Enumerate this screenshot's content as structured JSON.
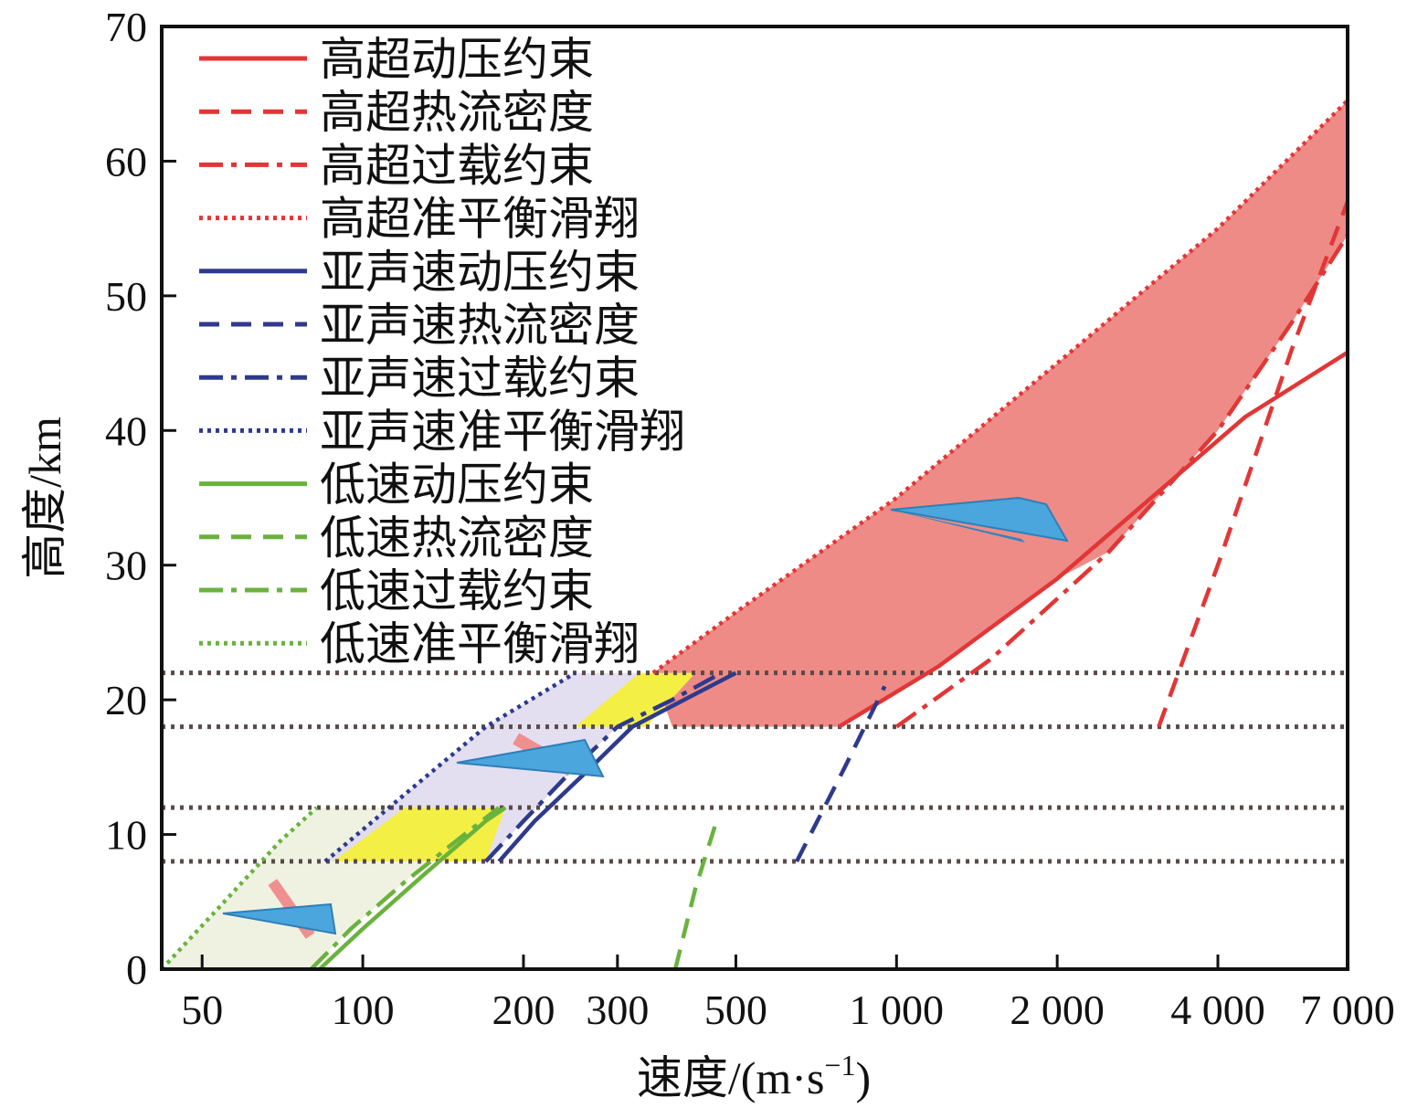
{
  "chart_data": {
    "type": "line",
    "xscale": "log",
    "xlabel_main": "速度/(m·s",
    "xlabel_sup": "−1",
    "xlabel_close": ")",
    "ylabel": "高度/km",
    "xlim": [
      42,
      7000
    ],
    "ylim": [
      0,
      70
    ],
    "xticks": [
      50,
      100,
      200,
      300,
      500,
      1000,
      2000,
      4000,
      7000
    ],
    "xtick_labels": [
      "50",
      "100",
      "200",
      "300",
      "500",
      "1 000",
      "2 000",
      "4 000",
      "7 000"
    ],
    "yticks": [
      0,
      10,
      20,
      30,
      40,
      50,
      60,
      70
    ],
    "ytick_labels": [
      "0",
      "10",
      "20",
      "30",
      "40",
      "50",
      "60",
      "70"
    ],
    "colors": {
      "hyper": "#e23636",
      "subsonic": "#2e3a8c",
      "low": "#6ab23e",
      "ref_line": "#5a4a48"
    },
    "reference_altitudes": [
      8,
      12,
      18,
      22
    ],
    "series": [
      {
        "name": "高超动压约束",
        "group": "hyper",
        "style": "solid",
        "x": [
          780,
          1200,
          2000,
          4500,
          7000
        ],
        "y": [
          18,
          22.5,
          29,
          41,
          45.8
        ]
      },
      {
        "name": "高超热流密度",
        "group": "hyper",
        "style": "dashed",
        "x": [
          3100,
          4000,
          5500,
          7000
        ],
        "y": [
          18,
          30,
          46,
          57
        ]
      },
      {
        "name": "高超过载约束",
        "group": "hyper",
        "style": "dashdot",
        "x": [
          1000,
          1500,
          2500,
          4000,
          5500,
          7000
        ],
        "y": [
          18,
          23,
          31,
          40,
          48,
          54.5
        ]
      },
      {
        "name": "高超准平衡滑翔",
        "group": "hyper",
        "style": "dotted",
        "x": [
          350,
          500,
          1000,
          2000,
          4000,
          7000
        ],
        "y": [
          22,
          26.5,
          35,
          45,
          55,
          64.5
        ]
      },
      {
        "name": "亚声速动压约束",
        "group": "subsonic",
        "style": "solid",
        "x": [
          180,
          210,
          260,
          320,
          400,
          500
        ],
        "y": [
          8,
          11,
          14.5,
          18,
          20,
          22
        ]
      },
      {
        "name": "亚声速热流密度",
        "group": "subsonic",
        "style": "dashed",
        "x": [
          650,
          800,
          950
        ],
        "y": [
          8,
          15,
          21
        ]
      },
      {
        "name": "亚声速过载约束",
        "group": "subsonic",
        "style": "dashdot",
        "x": [
          170,
          200,
          250,
          300,
          380,
          470
        ],
        "y": [
          8,
          11,
          15,
          18,
          20,
          22
        ]
      },
      {
        "name": "亚声速准平衡滑翔",
        "group": "subsonic",
        "style": "dotted",
        "x": [
          85,
          120,
          170,
          250
        ],
        "y": [
          8,
          13,
          18,
          22
        ]
      },
      {
        "name": "低速动压约束",
        "group": "low",
        "style": "solid",
        "x": [
          83,
          100,
          130,
          170,
          185
        ],
        "y": [
          0,
          3,
          7,
          11,
          12
        ]
      },
      {
        "name": "低速热流密度",
        "group": "low",
        "style": "dashed",
        "x": [
          385,
          420,
          460
        ],
        "y": [
          0,
          6,
          11
        ]
      },
      {
        "name": "低速过载约束",
        "group": "low",
        "style": "dashdot",
        "x": [
          80,
          95,
          120,
          155,
          180
        ],
        "y": [
          0,
          3,
          6.5,
          10,
          12
        ]
      },
      {
        "name": "低速准平衡滑翔",
        "group": "low",
        "style": "dotted",
        "x": [
          42,
          55,
          70,
          82
        ],
        "y": [
          0,
          5,
          9.5,
          12
        ]
      }
    ]
  }
}
